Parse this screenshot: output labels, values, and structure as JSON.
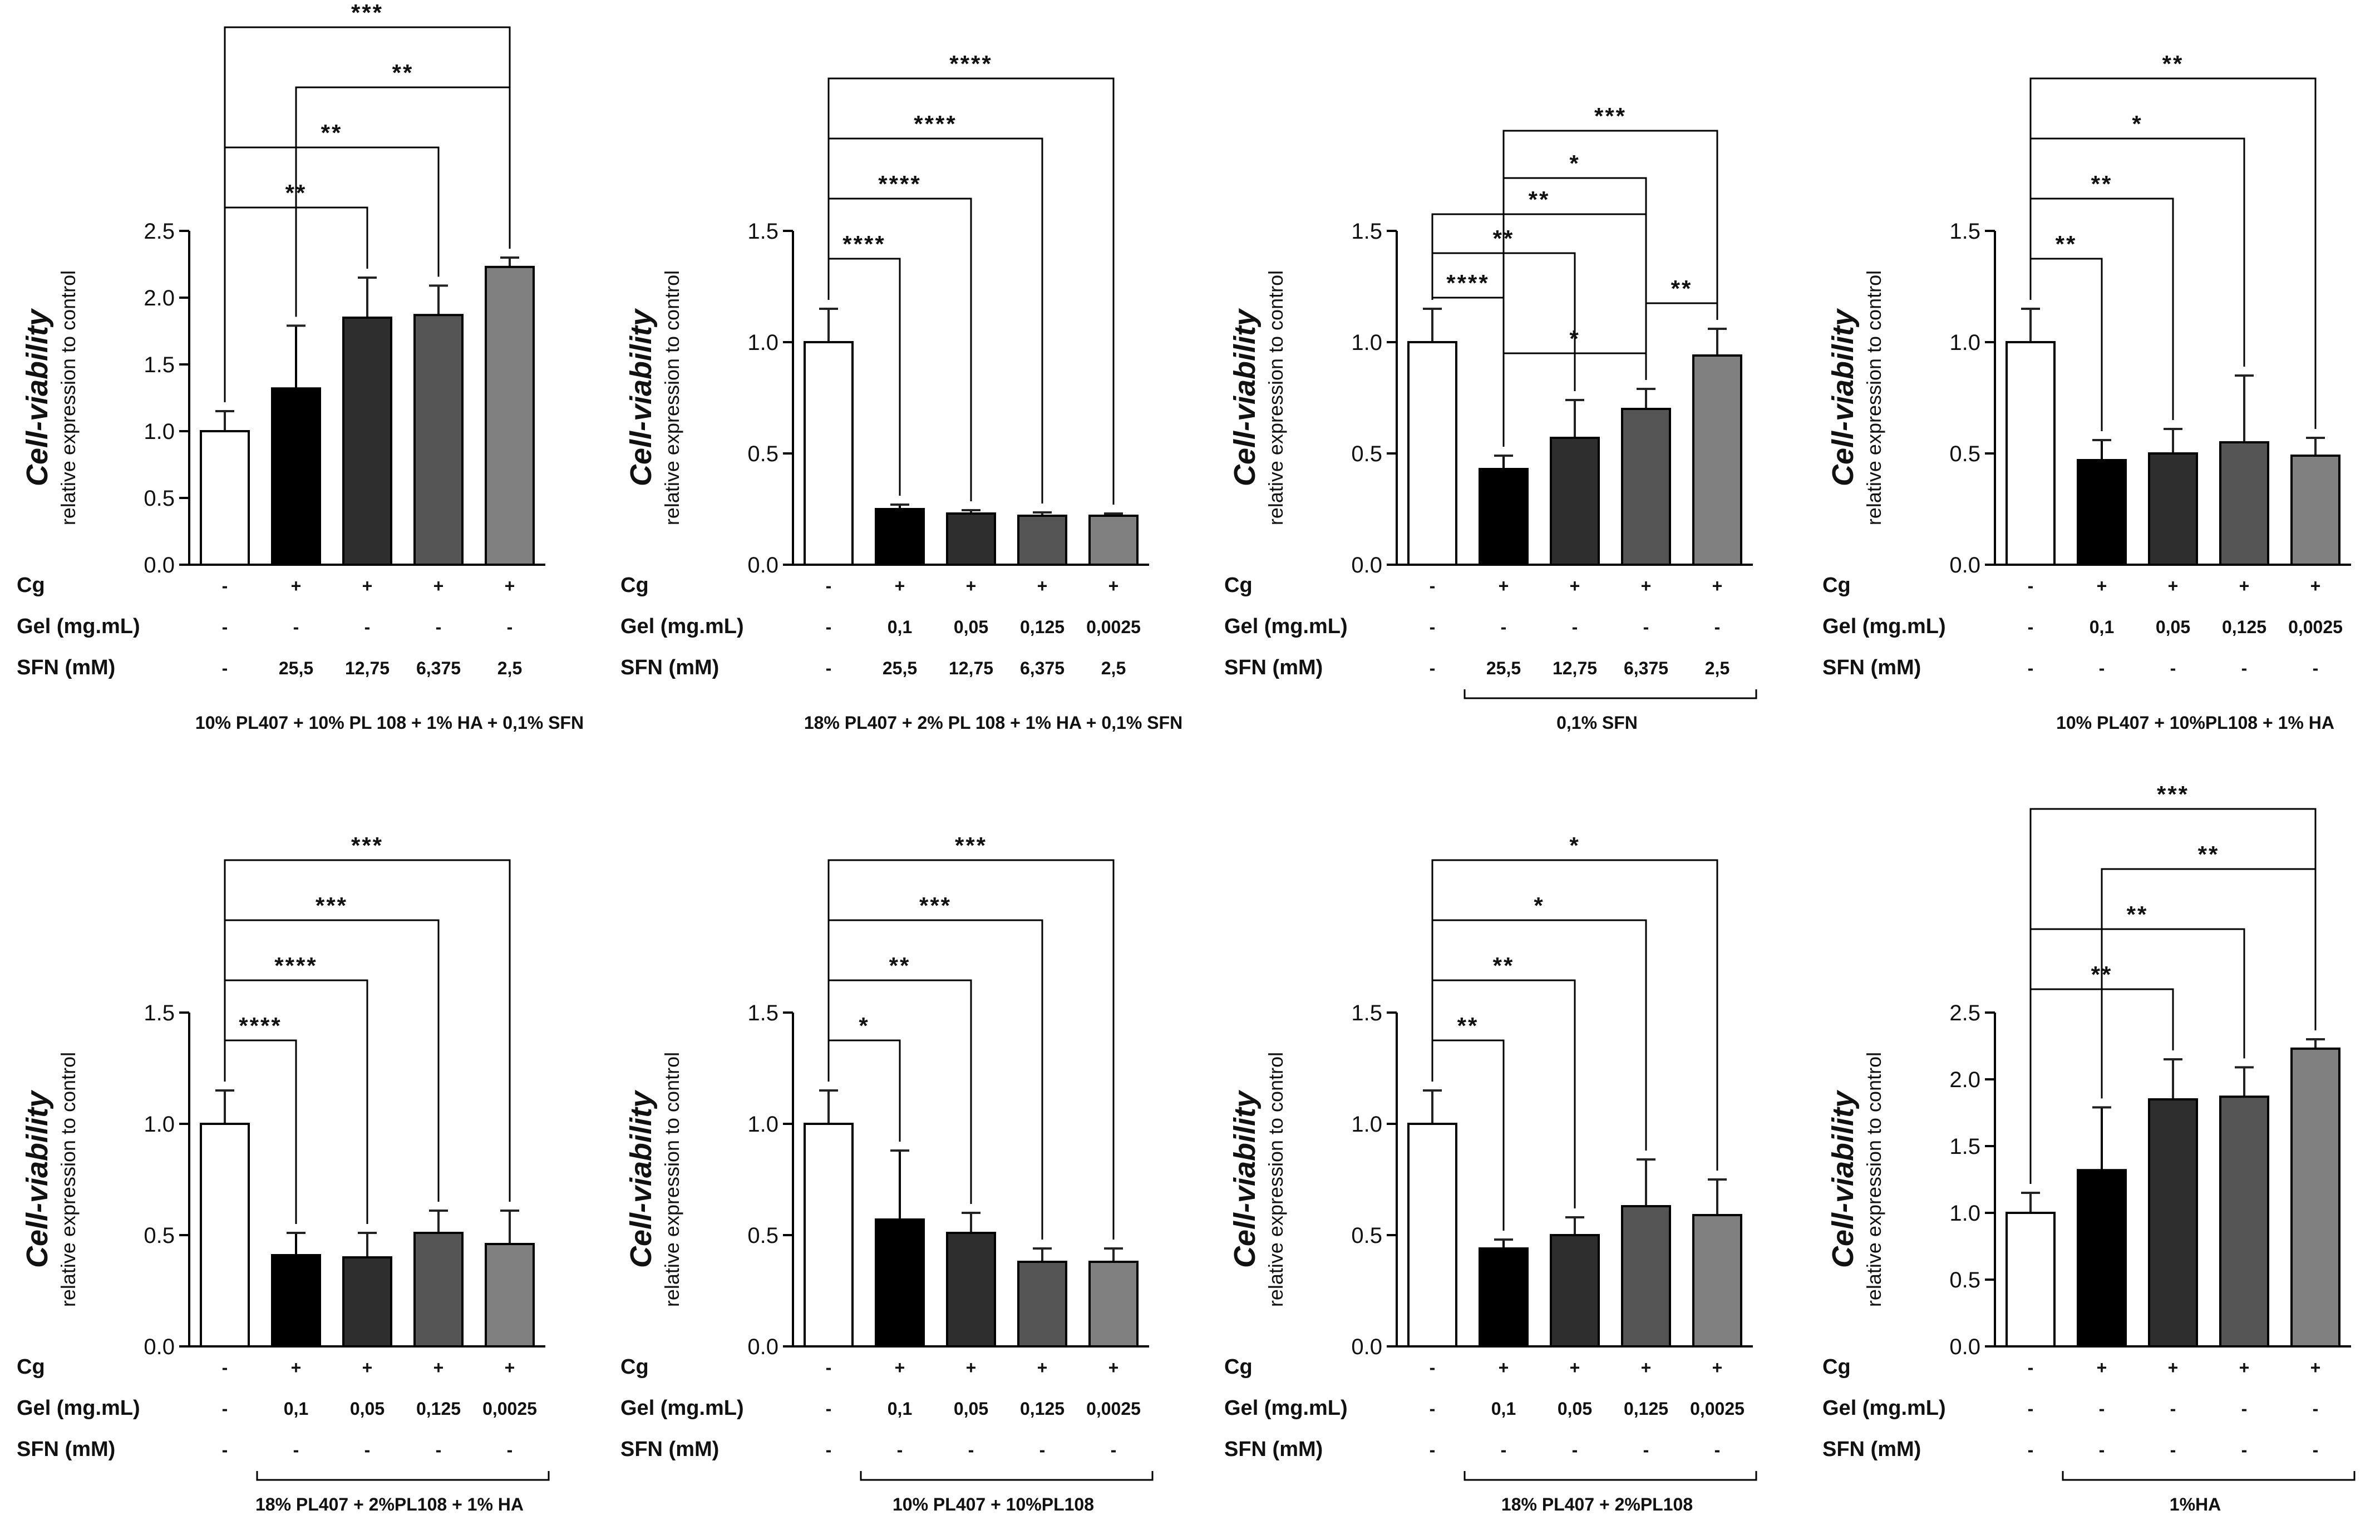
{
  "figure": {
    "row_labels": [
      "Cg",
      "Gel  (mg.mL)",
      "SFN (mM)"
    ],
    "ylabel_main": "Cell-viability",
    "ylabel_sub": "relative expression to control"
  },
  "chart_data": [
    {
      "type": "bar",
      "panel": "10% PL407 + 10% PL 108 + 1% HA + 0,1% SFN",
      "ylabel": "Cell-viability relative expression to control",
      "ylim": [
        0,
        2.5
      ],
      "yticks": [
        "0.0",
        "0.5",
        "1.0",
        "1.5",
        "2.0",
        "2.5"
      ],
      "values": [
        1.0,
        1.32,
        1.85,
        1.87,
        2.23
      ],
      "errors": [
        0.15,
        0.47,
        0.3,
        0.22,
        0.07
      ],
      "fills": [
        "#ffffff",
        "#000000",
        "#2e2e2e",
        "#555555",
        "#808080"
      ],
      "table": {
        "Cg": [
          "-",
          "+",
          "+",
          "+",
          "+"
        ],
        "Gel": [
          "-",
          "-",
          "-",
          "-",
          "-"
        ],
        "SFN": [
          "-",
          "25,5",
          "12,75",
          "6,375",
          "2,5"
        ]
      },
      "comparisons": [
        {
          "from": 0,
          "to": 2,
          "label": "**"
        },
        {
          "from": 0,
          "to": 3,
          "label": "**"
        },
        {
          "from": 1,
          "to": 4,
          "label": "**"
        },
        {
          "from": 0,
          "to": 4,
          "label": "***"
        }
      ],
      "group_bracket": false,
      "caption": "10% PL407 + 10% PL 108 + 1% HA + 0,1% SFN"
    },
    {
      "type": "bar",
      "panel": "18% PL407 + 2% PL 108 + 1% HA + 0,1% SFN",
      "ylabel": "Cell-viability relative expression to control",
      "ylim": [
        0,
        1.5
      ],
      "yticks": [
        "0.0",
        "0.5",
        "1.0",
        "1.5"
      ],
      "values": [
        1.0,
        0.25,
        0.23,
        0.22,
        0.22
      ],
      "errors": [
        0.15,
        0.02,
        0.015,
        0.015,
        0.01
      ],
      "fills": [
        "#ffffff",
        "#000000",
        "#2e2e2e",
        "#555555",
        "#808080"
      ],
      "table": {
        "Cg": [
          "-",
          "+",
          "+",
          "+",
          "+"
        ],
        "Gel": [
          "-",
          "0,1",
          "0,05",
          "0,125",
          "0,0025"
        ],
        "SFN": [
          "-",
          "25,5",
          "12,75",
          "6,375",
          "2,5"
        ]
      },
      "comparisons": [
        {
          "from": 0,
          "to": 1,
          "label": "****"
        },
        {
          "from": 0,
          "to": 2,
          "label": "****"
        },
        {
          "from": 0,
          "to": 3,
          "label": "****"
        },
        {
          "from": 0,
          "to": 4,
          "label": "****"
        }
      ],
      "group_bracket": false,
      "caption": "18% PL407 + 2% PL 108 + 1% HA + 0,1% SFN"
    },
    {
      "type": "bar",
      "panel": "0,1% SFN",
      "ylabel": "Cell-viability relative expression to control",
      "ylim": [
        0,
        1.5
      ],
      "yticks": [
        "0.0",
        "0.5",
        "1.0",
        "1.5"
      ],
      "values": [
        1.0,
        0.43,
        0.57,
        0.7,
        0.94
      ],
      "errors": [
        0.15,
        0.06,
        0.17,
        0.09,
        0.12
      ],
      "fills": [
        "#ffffff",
        "#000000",
        "#2e2e2e",
        "#555555",
        "#808080"
      ],
      "table": {
        "Cg": [
          "-",
          "+",
          "+",
          "+",
          "+"
        ],
        "Gel": [
          "-",
          "-",
          "-",
          "-",
          "-"
        ],
        "SFN": [
          "-",
          "25,5",
          "12,75",
          "6,375",
          "2,5"
        ]
      },
      "comparisons": [
        {
          "from": 0,
          "to": 1,
          "label": "****"
        },
        {
          "from": 0,
          "to": 2,
          "label": "**"
        },
        {
          "from": 0,
          "to": 3,
          "label": "**"
        },
        {
          "from": 1,
          "to": 3,
          "label": "*"
        },
        {
          "from": 3,
          "to": 4,
          "label": "**"
        },
        {
          "from": 1,
          "to": 4,
          "label": "***"
        },
        {
          "from": 1,
          "to": 3,
          "label": "*"
        }
      ],
      "group_bracket": true,
      "caption": "0,1% SFN"
    },
    {
      "type": "bar",
      "panel": "10% PL407 + 10%PL108 + 1% HA",
      "ylabel": "Cell-viability relative expression to control",
      "ylim": [
        0,
        1.5
      ],
      "yticks": [
        "0.0",
        "0.5",
        "1.0",
        "1.5"
      ],
      "values": [
        1.0,
        0.47,
        0.5,
        0.55,
        0.49
      ],
      "errors": [
        0.15,
        0.09,
        0.11,
        0.3,
        0.08
      ],
      "fills": [
        "#ffffff",
        "#000000",
        "#2e2e2e",
        "#555555",
        "#808080"
      ],
      "table": {
        "Cg": [
          "-",
          "+",
          "+",
          "+",
          "+"
        ],
        "Gel": [
          "-",
          "0,1",
          "0,05",
          "0,125",
          "0,0025"
        ],
        "SFN": [
          "-",
          "-",
          "-",
          "-",
          "-"
        ]
      },
      "comparisons": [
        {
          "from": 0,
          "to": 1,
          "label": "**"
        },
        {
          "from": 0,
          "to": 2,
          "label": "**"
        },
        {
          "from": 0,
          "to": 3,
          "label": "*"
        },
        {
          "from": 0,
          "to": 4,
          "label": "**"
        }
      ],
      "group_bracket": false,
      "caption": "10% PL407 + 10%PL108 + 1% HA"
    },
    {
      "type": "bar",
      "panel": "18% PL407 + 2%PL108 + 1% HA",
      "ylabel": "Cell-viability relative expression to control",
      "ylim": [
        0,
        1.5
      ],
      "yticks": [
        "0.0",
        "0.5",
        "1.0",
        "1.5"
      ],
      "values": [
        1.0,
        0.41,
        0.4,
        0.51,
        0.46
      ],
      "errors": [
        0.15,
        0.1,
        0.11,
        0.1,
        0.15
      ],
      "fills": [
        "#ffffff",
        "#000000",
        "#2e2e2e",
        "#555555",
        "#808080"
      ],
      "table": {
        "Cg": [
          "-",
          "+",
          "+",
          "+",
          "+"
        ],
        "Gel": [
          "-",
          "0,1",
          "0,05",
          "0,125",
          "0,0025"
        ],
        "SFN": [
          "-",
          "-",
          "-",
          "-",
          "-"
        ]
      },
      "comparisons": [
        {
          "from": 0,
          "to": 1,
          "label": "****"
        },
        {
          "from": 0,
          "to": 2,
          "label": "****"
        },
        {
          "from": 0,
          "to": 3,
          "label": "***"
        },
        {
          "from": 0,
          "to": 4,
          "label": "***"
        }
      ],
      "group_bracket": true,
      "caption": "18% PL407 + 2%PL108 + 1% HA"
    },
    {
      "type": "bar",
      "panel": "10% PL407 + 10%PL108",
      "ylabel": "Cell-viability relative expression to control",
      "ylim": [
        0,
        1.5
      ],
      "yticks": [
        "0.0",
        "0.5",
        "1.0",
        "1.5"
      ],
      "values": [
        1.0,
        0.57,
        0.51,
        0.38,
        0.38
      ],
      "errors": [
        0.15,
        0.31,
        0.09,
        0.06,
        0.06
      ],
      "fills": [
        "#ffffff",
        "#000000",
        "#2e2e2e",
        "#555555",
        "#808080"
      ],
      "table": {
        "Cg": [
          "-",
          "+",
          "+",
          "+",
          "+"
        ],
        "Gel": [
          "-",
          "0,1",
          "0,05",
          "0,125",
          "0,0025"
        ],
        "SFN": [
          "-",
          "-",
          "-",
          "-",
          "-"
        ]
      },
      "comparisons": [
        {
          "from": 0,
          "to": 1,
          "label": "*"
        },
        {
          "from": 0,
          "to": 2,
          "label": "**"
        },
        {
          "from": 0,
          "to": 3,
          "label": "***"
        },
        {
          "from": 0,
          "to": 4,
          "label": "***"
        }
      ],
      "group_bracket": true,
      "caption": "10% PL407 + 10%PL108"
    },
    {
      "type": "bar",
      "panel": "18% PL407 + 2%PL108",
      "ylabel": "Cell-viability relative expression to control",
      "ylim": [
        0,
        1.5
      ],
      "yticks": [
        "0.0",
        "0.5",
        "1.0",
        "1.5"
      ],
      "values": [
        1.0,
        0.44,
        0.5,
        0.63,
        0.59
      ],
      "errors": [
        0.15,
        0.04,
        0.08,
        0.21,
        0.16
      ],
      "fills": [
        "#ffffff",
        "#000000",
        "#2e2e2e",
        "#555555",
        "#808080"
      ],
      "table": {
        "Cg": [
          "-",
          "+",
          "+",
          "+",
          "+"
        ],
        "Gel": [
          "-",
          "0,1",
          "0,05",
          "0,125",
          "0,0025"
        ],
        "SFN": [
          "-",
          "-",
          "-",
          "-",
          "-"
        ]
      },
      "comparisons": [
        {
          "from": 0,
          "to": 1,
          "label": "**"
        },
        {
          "from": 0,
          "to": 2,
          "label": "**"
        },
        {
          "from": 0,
          "to": 3,
          "label": "*"
        },
        {
          "from": 0,
          "to": 4,
          "label": "*"
        }
      ],
      "group_bracket": true,
      "caption": "18% PL407 + 2%PL108"
    },
    {
      "type": "bar",
      "panel": "1%HA",
      "ylabel": "Cell-viability relative expression to control",
      "ylim": [
        0,
        2.5
      ],
      "yticks": [
        "0.0",
        "0.5",
        "1.0",
        "1.5",
        "2.0",
        "2.5"
      ],
      "values": [
        1.0,
        1.32,
        1.85,
        1.87,
        2.23
      ],
      "errors": [
        0.15,
        0.47,
        0.3,
        0.22,
        0.07
      ],
      "fills": [
        "#ffffff",
        "#000000",
        "#2e2e2e",
        "#555555",
        "#808080"
      ],
      "table": {
        "Cg": [
          "-",
          "+",
          "+",
          "+",
          "+"
        ],
        "Gel": [
          "-",
          "-",
          "-",
          "-",
          "-"
        ],
        "SFN": [
          "-",
          "-",
          "-",
          "-",
          "-"
        ]
      },
      "comparisons": [
        {
          "from": 0,
          "to": 2,
          "label": "**"
        },
        {
          "from": 0,
          "to": 3,
          "label": "**"
        },
        {
          "from": 1,
          "to": 4,
          "label": "**"
        },
        {
          "from": 0,
          "to": 4,
          "label": "***"
        }
      ],
      "group_bracket": true,
      "caption": "1%HA"
    }
  ]
}
